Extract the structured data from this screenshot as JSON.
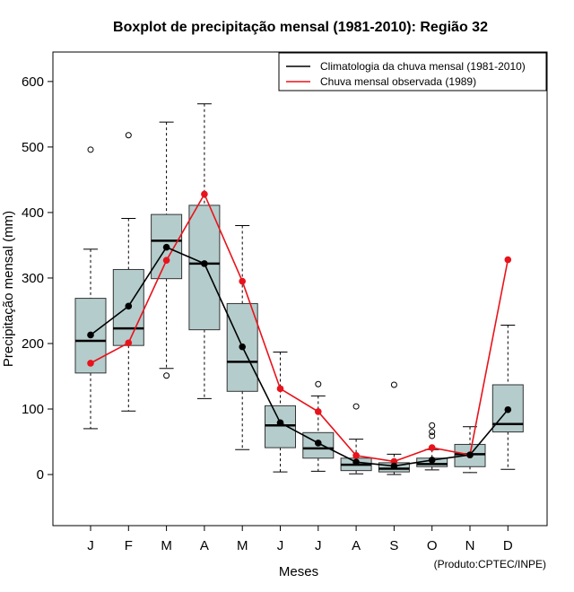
{
  "chart_data": {
    "type": "boxplot",
    "title": "Boxplot de precipitação mensal (1981-2010): Região 32",
    "xlabel": "Meses",
    "ylabel": "Precipitação mensal (mm)",
    "ylim": [
      -78,
      645
    ],
    "yticks": [
      0,
      100,
      200,
      300,
      400,
      500,
      600
    ],
    "categories": [
      "J",
      "F",
      "M",
      "A",
      "M",
      "J",
      "J",
      "A",
      "S",
      "O",
      "N",
      "D"
    ],
    "boxes": [
      {
        "whisker_low": 70,
        "q1": 155,
        "median": 204,
        "q3": 269,
        "whisker_high": 344,
        "outliers": [
          496
        ]
      },
      {
        "whisker_low": 97,
        "q1": 197,
        "median": 223,
        "q3": 313,
        "whisker_high": 391,
        "outliers": [
          518
        ]
      },
      {
        "whisker_low": 162,
        "q1": 299,
        "median": 357,
        "q3": 397,
        "whisker_high": 538,
        "outliers": [
          151
        ]
      },
      {
        "whisker_low": 116,
        "q1": 221,
        "median": 322,
        "q3": 411,
        "whisker_high": 566,
        "outliers": []
      },
      {
        "whisker_low": 38,
        "q1": 127,
        "median": 172,
        "q3": 261,
        "whisker_high": 380,
        "outliers": []
      },
      {
        "whisker_low": 4,
        "q1": 41,
        "median": 75,
        "q3": 105,
        "whisker_high": 187,
        "outliers": []
      },
      {
        "whisker_low": 5,
        "q1": 25,
        "median": 40,
        "q3": 64,
        "whisker_high": 120,
        "outliers": [
          138
        ]
      },
      {
        "whisker_low": 1,
        "q1": 6,
        "median": 15,
        "q3": 25,
        "whisker_high": 54,
        "outliers": [
          104
        ]
      },
      {
        "whisker_low": 0,
        "q1": 4,
        "median": 9,
        "q3": 18,
        "whisker_high": 31,
        "outliers": [
          137
        ]
      },
      {
        "whisker_low": 7,
        "q1": 12,
        "median": 16,
        "q3": 25,
        "whisker_high": 38,
        "outliers": [
          59,
          65,
          75
        ]
      },
      {
        "whisker_low": 3,
        "q1": 12,
        "median": 31,
        "q3": 46,
        "whisker_high": 73,
        "outliers": []
      },
      {
        "whisker_low": 8,
        "q1": 65,
        "median": 77,
        "q3": 137,
        "whisker_high": 228,
        "outliers": []
      }
    ],
    "series": [
      {
        "name": "Climatologia da chuva mensal (1981-2010)",
        "color": "#000000",
        "values": [
          213,
          257,
          347,
          322,
          195,
          79,
          48,
          19,
          13,
          22,
          30,
          99
        ]
      },
      {
        "name": "Chuva mensal observada (1989)",
        "color": "#e8131b",
        "values": [
          170,
          201,
          327,
          428,
          295,
          131,
          96,
          29,
          20,
          41,
          30,
          328
        ]
      }
    ],
    "box_fill": "#b5cccc",
    "legend_position": "top-right",
    "credit": "(Produto:CPTEC/INPE)"
  }
}
